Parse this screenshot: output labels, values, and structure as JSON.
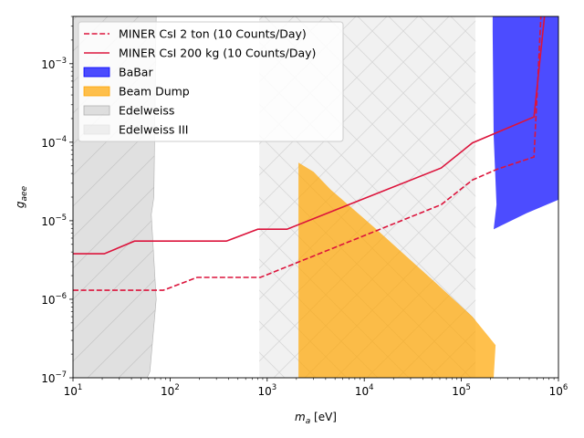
{
  "chart_data": {
    "type": "area",
    "xlabel_main": "m",
    "xlabel_sub": "a",
    "xlabel_unit": " [eV]",
    "ylabel_main": "g",
    "ylabel_sub": "aee",
    "x_scale": "log",
    "y_scale": "log",
    "xlim": [
      10,
      1000000
    ],
    "ylim": [
      1e-07,
      0.004
    ],
    "x_ticks": [
      {
        "value": 10,
        "base": "10",
        "exp": "1"
      },
      {
        "value": 100,
        "base": "10",
        "exp": "2"
      },
      {
        "value": 1000,
        "base": "10",
        "exp": "3"
      },
      {
        "value": 10000,
        "base": "10",
        "exp": "4"
      },
      {
        "value": 100000,
        "base": "10",
        "exp": "5"
      },
      {
        "value": 1000000,
        "base": "10",
        "exp": "6"
      }
    ],
    "y_ticks": [
      {
        "value": 1e-07,
        "base": "10",
        "exp": "−7"
      },
      {
        "value": 1e-06,
        "base": "10",
        "exp": "−6"
      },
      {
        "value": 1e-05,
        "base": "10",
        "exp": "−5"
      },
      {
        "value": 0.0001,
        "base": "10",
        "exp": "−4"
      },
      {
        "value": 0.001,
        "base": "10",
        "exp": "−3"
      }
    ],
    "grid": false,
    "legend_placement": "upper-left",
    "colors": {
      "miner": "#dc143c",
      "babar": "#0000ff",
      "beam_dump": "#ffa500",
      "edelweiss": "#bbbbbb",
      "edelweiss3": "#dddddd"
    },
    "series": [
      {
        "name": "MINER CsI 2 ton (10 Counts/Day)",
        "kind": "line",
        "style": "dashed",
        "color": "#dc143c",
        "points": [
          [
            10,
            1.3e-06
          ],
          [
            85,
            1.3e-06
          ],
          [
            190,
            1.9e-06
          ],
          [
            850,
            1.9e-06
          ],
          [
            62000,
            1.6e-05
          ],
          [
            130000,
            3.3e-05
          ],
          [
            230000,
            4.5e-05
          ],
          [
            560000,
            6.5e-05
          ],
          [
            660000,
            0.0041
          ]
        ]
      },
      {
        "name": "MINER CsI 200 kg (10 Counts/Day)",
        "kind": "line",
        "style": "solid",
        "color": "#dc143c",
        "points": [
          [
            10,
            3.8e-06
          ],
          [
            21,
            3.8e-06
          ],
          [
            43,
            5.5e-06
          ],
          [
            380,
            5.5e-06
          ],
          [
            800,
            7.8e-06
          ],
          [
            1600,
            7.8e-06
          ],
          [
            62000,
            4.7e-05
          ],
          [
            130000,
            9.8e-05
          ],
          [
            560000,
            0.00021
          ],
          [
            720000,
            0.0041
          ]
        ]
      },
      {
        "name": "BaBar",
        "kind": "fill",
        "color": "#0000ff",
        "alpha": 0.7,
        "points": [
          [
            210000,
            0.0041
          ],
          [
            1000000,
            0.0041
          ],
          [
            1000000,
            1.85e-05
          ],
          [
            470000,
            1.25e-05
          ],
          [
            215000,
            7.8e-06
          ],
          [
            230000,
            1.6e-05
          ],
          [
            215000,
            0.00012
          ],
          [
            210000,
            0.0025
          ]
        ]
      },
      {
        "name": "Beam Dump",
        "kind": "fill",
        "color": "#ffa500",
        "alpha": 0.7,
        "points": [
          [
            2100,
            5.5e-05
          ],
          [
            3000,
            4.2e-05
          ],
          [
            4500,
            2.5e-05
          ],
          [
            13000,
            8e-06
          ],
          [
            55000,
            1.6e-06
          ],
          [
            130000,
            6e-07
          ],
          [
            225000,
            2.6e-07
          ],
          [
            215000,
            1e-07
          ],
          [
            2100,
            1e-07
          ]
        ]
      },
      {
        "name": "Edelweiss",
        "kind": "fill",
        "color": "#bbbbbb",
        "alpha": 0.45,
        "hatch": "/",
        "points": [
          [
            10,
            0.0041
          ],
          [
            72,
            0.0041
          ],
          [
            68,
            2e-05
          ],
          [
            64,
            1.2e-05
          ],
          [
            72,
            1e-06
          ],
          [
            62,
            1.2e-07
          ],
          [
            58,
            1e-07
          ],
          [
            10,
            1e-07
          ]
        ]
      },
      {
        "name": "Edelweiss III",
        "kind": "fill",
        "color": "#dddddd",
        "alpha": 0.4,
        "hatch": "x",
        "points": [
          [
            830,
            0.0041
          ],
          [
            140000,
            0.0041
          ],
          [
            140000,
            1e-07
          ],
          [
            830,
            1e-07
          ]
        ]
      }
    ]
  }
}
